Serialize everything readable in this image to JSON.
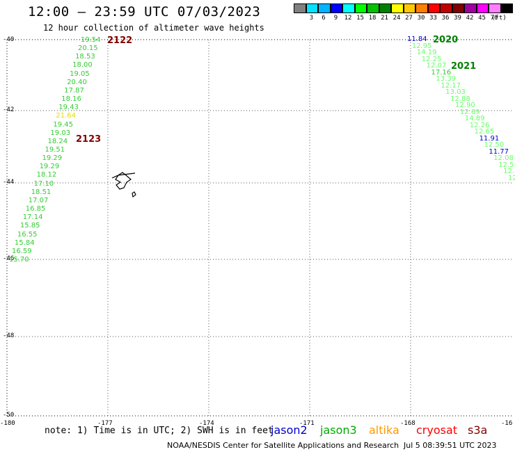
{
  "header": {
    "title": "12:00 — 23:59 UTC 07/03/2023",
    "subtitle": "12 hour collection of altimeter wave heights"
  },
  "colorbar": {
    "unit": "(ft)",
    "bins": [
      {
        "label": "",
        "color": "#808080"
      },
      {
        "label": "3",
        "color": "#00e4ff"
      },
      {
        "label": "6",
        "color": "#00b4ff"
      },
      {
        "label": "9",
        "color": "#0000ff"
      },
      {
        "label": "12",
        "color": "#00ffff"
      },
      {
        "label": "15",
        "color": "#00ff00"
      },
      {
        "label": "18",
        "color": "#00c000"
      },
      {
        "label": "21",
        "color": "#008000"
      },
      {
        "label": "24",
        "color": "#ffff00"
      },
      {
        "label": "27",
        "color": "#ffc800"
      },
      {
        "label": "30",
        "color": "#ff8000"
      },
      {
        "label": "33",
        "color": "#ff0000"
      },
      {
        "label": "36",
        "color": "#c00000"
      },
      {
        "label": "39",
        "color": "#800000"
      },
      {
        "label": "42",
        "color": "#a000a0"
      },
      {
        "label": "45",
        "color": "#ff00ff"
      },
      {
        "label": "70",
        "color": "#ff80ff"
      },
      {
        "label": "",
        "color": "#000000"
      }
    ]
  },
  "axes": {
    "lon_ticks": [
      "-180",
      "-177",
      "-174",
      "-171",
      "-168",
      "-16"
    ],
    "lat_ticks": [
      "-40",
      "-42",
      "-44",
      "-46",
      "-48",
      "-50"
    ]
  },
  "pass_labels": [
    {
      "text": "2122",
      "color": "#800000"
    },
    {
      "text": "2123",
      "color": "#800000"
    },
    {
      "text": "2020",
      "color": "#008000"
    },
    {
      "text": "2021",
      "color": "#008000"
    }
  ],
  "track_left": [
    {
      "v": "19.54",
      "c": "#33cc33"
    },
    {
      "v": "20.15",
      "c": "#33cc33"
    },
    {
      "v": "18.53",
      "c": "#33cc33"
    },
    {
      "v": "18.00",
      "c": "#33cc33"
    },
    {
      "v": "19.05",
      "c": "#33cc33"
    },
    {
      "v": "20.40",
      "c": "#33cc33"
    },
    {
      "v": "17.87",
      "c": "#33cc33"
    },
    {
      "v": "18.16",
      "c": "#33cc33"
    },
    {
      "v": "19.43",
      "c": "#33cc33"
    },
    {
      "v": "21.64",
      "c": "#dddd00"
    },
    {
      "v": "19.45",
      "c": "#33cc33"
    },
    {
      "v": "19.03",
      "c": "#33cc33"
    },
    {
      "v": "18.24",
      "c": "#33cc33"
    },
    {
      "v": "19.51",
      "c": "#33cc33"
    },
    {
      "v": "19.29",
      "c": "#33cc33"
    },
    {
      "v": "19.29",
      "c": "#33cc33"
    },
    {
      "v": "18.12",
      "c": "#33cc33"
    },
    {
      "v": "17.10",
      "c": "#33cc33"
    },
    {
      "v": "18.51",
      "c": "#33cc33"
    },
    {
      "v": "17.07",
      "c": "#33cc33"
    },
    {
      "v": "16.85",
      "c": "#33cc33"
    },
    {
      "v": "17.14",
      "c": "#33cc33"
    },
    {
      "v": "15.85",
      "c": "#33cc33"
    },
    {
      "v": "16.55",
      "c": "#33cc33"
    },
    {
      "v": "15.84",
      "c": "#33cc33"
    },
    {
      "v": "16.59",
      "c": "#33cc33"
    },
    {
      "v": "15.70",
      "c": "#33cc33"
    }
  ],
  "track_right": [
    {
      "v": "11.84",
      "c": "#0000cc"
    },
    {
      "v": "12.95",
      "c": "#66ff66"
    },
    {
      "v": "14.19",
      "c": "#66ff66"
    },
    {
      "v": "12.25",
      "c": "#66ff66"
    },
    {
      "v": "12.07",
      "c": "#66ff66"
    },
    {
      "v": "17.16",
      "c": "#33cc33"
    },
    {
      "v": "13.39",
      "c": "#66ff66"
    },
    {
      "v": "12.17",
      "c": "#66ff66"
    },
    {
      "v": "13.03",
      "c": "#66ff66"
    },
    {
      "v": "12.88",
      "c": "#66ff66"
    },
    {
      "v": "12.90",
      "c": "#66ff66"
    },
    {
      "v": "12.69",
      "c": "#66ff66"
    },
    {
      "v": "14.89",
      "c": "#66ff66"
    },
    {
      "v": "12.26",
      "c": "#66ff66"
    },
    {
      "v": "12.65",
      "c": "#66ff66"
    },
    {
      "v": "11.91",
      "c": "#0000cc"
    },
    {
      "v": "12.50",
      "c": "#66ff66"
    },
    {
      "v": "11.77",
      "c": "#0000cc"
    },
    {
      "v": "12.08",
      "c": "#66ff66"
    },
    {
      "v": "12.5",
      "c": "#66ff66"
    },
    {
      "v": "12.",
      "c": "#66ff66"
    },
    {
      "v": "12",
      "c": "#66ff66"
    }
  ],
  "footer": {
    "note": "note: 1) Time is in UTC; 2) SWH is in feet",
    "satellites": [
      {
        "name": "jason2",
        "color": "#0000cc"
      },
      {
        "name": "jason3",
        "color": "#00aa00"
      },
      {
        "name": "altika",
        "color": "#ff9900"
      },
      {
        "name": "cryosat",
        "color": "#ff0000"
      },
      {
        "name": "s3a",
        "color": "#800000"
      }
    ],
    "credit": "NOAA/NESDIS Center for Satellite Applications and Research",
    "timestamp": "Jul  5 08:39:51 UTC 2023"
  }
}
